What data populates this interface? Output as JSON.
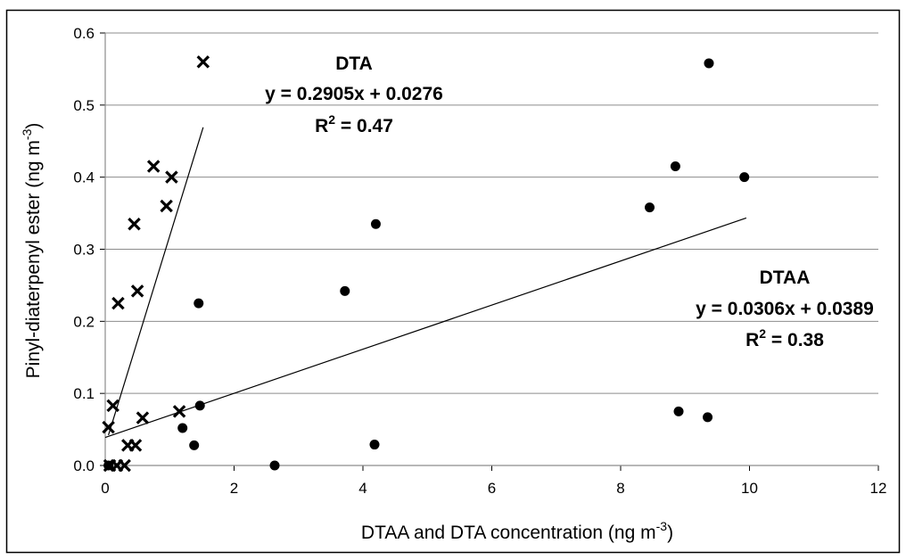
{
  "chart_data": {
    "type": "scatter",
    "xlabel": "DTAA  and DTA concentration (ng m",
    "xlabel_sup": "-3",
    "xlabel_end": ")",
    "ylabel": "Pinyl-diaterpenyl ester (ng m",
    "ylabel_sup": "-3",
    "ylabel_end": ")",
    "xlim": [
      0,
      12
    ],
    "ylim": [
      0,
      0.6
    ],
    "xticks": [
      "0",
      "2",
      "4",
      "6",
      "8",
      "10",
      "12"
    ],
    "yticks": [
      "0.0",
      "0.1",
      "0.2",
      "0.3",
      "0.4",
      "0.5",
      "0.6"
    ],
    "grid": "horizontal",
    "legend": "none",
    "series": [
      {
        "marker": "x",
        "color": "#000000",
        "points": [
          {
            "x": 0.05,
            "y": 0.053
          },
          {
            "x": 0.07,
            "y": 0.0
          },
          {
            "x": 0.12,
            "y": 0.083
          },
          {
            "x": 0.18,
            "y": 0.0
          },
          {
            "x": 0.2,
            "y": 0.225
          },
          {
            "x": 0.3,
            "y": 0.0
          },
          {
            "x": 0.35,
            "y": 0.028
          },
          {
            "x": 0.45,
            "y": 0.335
          },
          {
            "x": 0.47,
            "y": 0.028
          },
          {
            "x": 0.5,
            "y": 0.242
          },
          {
            "x": 0.58,
            "y": 0.066
          },
          {
            "x": 0.75,
            "y": 0.415
          },
          {
            "x": 0.95,
            "y": 0.36
          },
          {
            "x": 1.03,
            "y": 0.4
          },
          {
            "x": 1.15,
            "y": 0.075
          },
          {
            "x": 1.52,
            "y": 0.56
          }
        ],
        "trend": {
          "slope": 0.2905,
          "intercept": 0.0276,
          "x_range": [
            0.05,
            1.52
          ]
        }
      },
      {
        "marker": "circle",
        "color": "#000000",
        "points": [
          {
            "x": 0.05,
            "y": 0.0
          },
          {
            "x": 1.2,
            "y": 0.052
          },
          {
            "x": 1.38,
            "y": 0.028
          },
          {
            "x": 1.45,
            "y": 0.225
          },
          {
            "x": 1.47,
            "y": 0.083
          },
          {
            "x": 2.63,
            "y": 0.0
          },
          {
            "x": 3.72,
            "y": 0.242
          },
          {
            "x": 4.18,
            "y": 0.029
          },
          {
            "x": 4.2,
            "y": 0.335
          },
          {
            "x": 8.45,
            "y": 0.358
          },
          {
            "x": 8.85,
            "y": 0.415
          },
          {
            "x": 8.9,
            "y": 0.075
          },
          {
            "x": 9.35,
            "y": 0.067
          },
          {
            "x": 9.37,
            "y": 0.558
          },
          {
            "x": 9.92,
            "y": 0.4
          }
        ],
        "trend": {
          "slope": 0.0306,
          "intercept": 0.0389,
          "x_range": [
            0.0,
            9.95
          ]
        }
      }
    ],
    "annotations": {
      "dta": {
        "name": "DTA",
        "equation": "y = 0.2905x + 0.0276",
        "r2_prefix": "R",
        "r2_sup": "2",
        "r2_value": " = 0.47"
      },
      "dtaa": {
        "name": "DTAA",
        "equation": "y = 0.0306x + 0.0389",
        "r2_prefix": "R",
        "r2_sup": "2",
        "r2_value": " = 0.38"
      }
    }
  }
}
